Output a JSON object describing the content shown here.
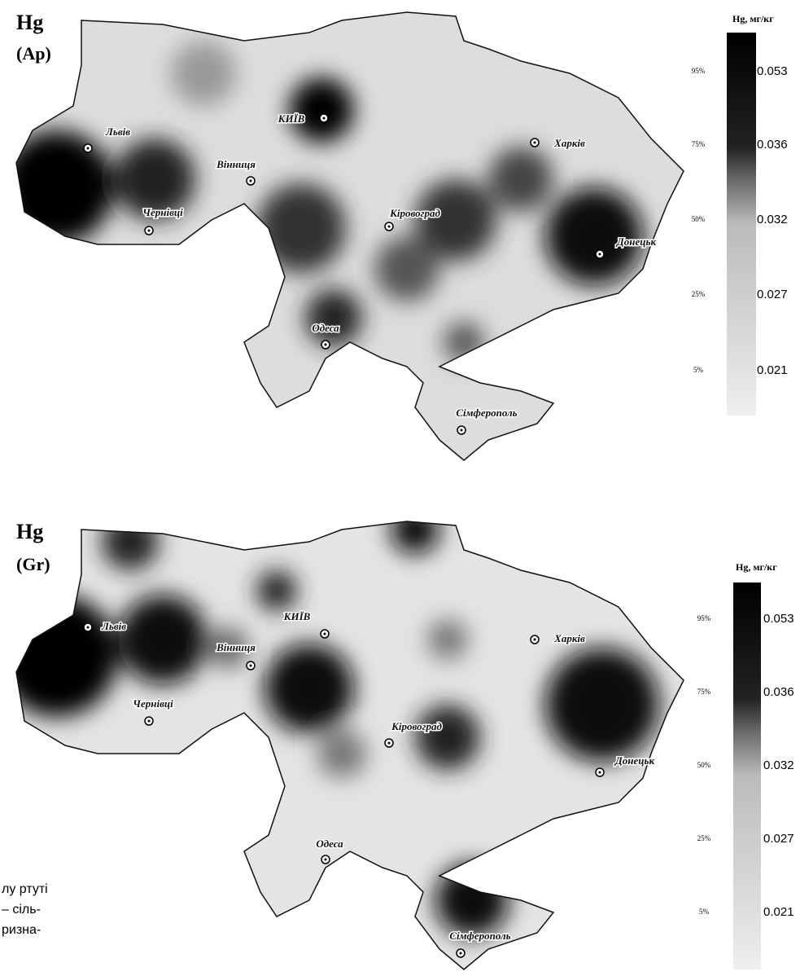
{
  "maps": [
    {
      "title": "Hg",
      "layer": "(Ap)",
      "cities": [
        "Львів",
        "КИЇВ",
        "Вінниця",
        "Чернівці",
        "Кіровоград",
        "Харків",
        "Донецьк",
        "Одеса",
        "Сімферополь"
      ],
      "legend": {
        "title": "Hg, мг/кг",
        "levels": [
          {
            "percentile": "95%",
            "value": "0.053"
          },
          {
            "percentile": "75%",
            "value": "0.036"
          },
          {
            "percentile": "50%",
            "value": "0.032"
          },
          {
            "percentile": "25%",
            "value": "0.027"
          },
          {
            "percentile": "5%",
            "value": "0.021"
          }
        ]
      }
    },
    {
      "title": "Hg",
      "layer": "(Gr)",
      "cities": [
        "Львів",
        "КИЇВ",
        "Вінниця",
        "Чернівці",
        "Кіровоград",
        "Харків",
        "Донецьк",
        "Одеса",
        "Сімферополь"
      ],
      "legend": {
        "title": "Hg, мг/кг",
        "levels": [
          {
            "percentile": "95%",
            "value": "0.053"
          },
          {
            "percentile": "75%",
            "value": "0.036"
          },
          {
            "percentile": "50%",
            "value": "0.032"
          },
          {
            "percentile": "25%",
            "value": "0.027"
          },
          {
            "percentile": "5%",
            "value": "0.021"
          }
        ]
      }
    }
  ],
  "caption_fragment": [
    "лу ртуті",
    "– сіль-",
    "ризна-"
  ]
}
